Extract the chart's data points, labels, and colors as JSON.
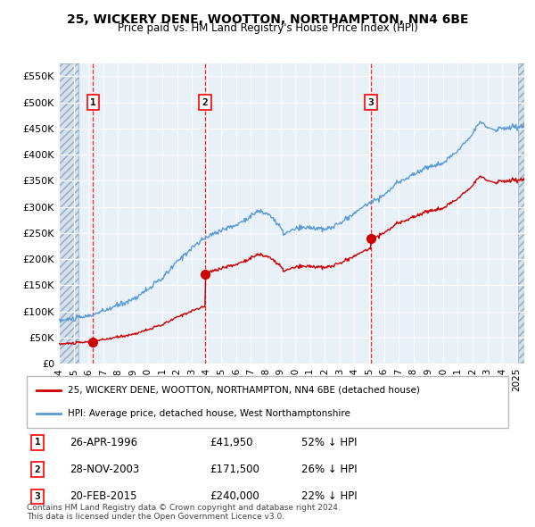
{
  "title1": "25, WICKERY DENE, WOOTTON, NORTHAMPTON, NN4 6BE",
  "title2": "Price paid vs. HM Land Registry's House Price Index (HPI)",
  "plot_bg": "#e8f0f8",
  "legend1": "25, WICKERY DENE, WOOTTON, NORTHAMPTON, NN4 6BE (detached house)",
  "legend2": "HPI: Average price, detached house, West Northamptonshire",
  "transactions": [
    {
      "num": 1,
      "date": "26-APR-1996",
      "price": 41950,
      "pct": "52% ↓ HPI",
      "year": 1996.32
    },
    {
      "num": 2,
      "date": "28-NOV-2003",
      "price": 171500,
      "pct": "26% ↓ HPI",
      "year": 2003.9
    },
    {
      "num": 3,
      "date": "20-FEB-2015",
      "price": 240000,
      "pct": "22% ↓ HPI",
      "year": 2015.13
    }
  ],
  "footer": "Contains HM Land Registry data © Crown copyright and database right 2024.\nThis data is licensed under the Open Government Licence v3.0.",
  "yticks": [
    0,
    50000,
    100000,
    150000,
    200000,
    250000,
    300000,
    350000,
    400000,
    450000,
    500000,
    550000
  ],
  "ylim": [
    0,
    575000
  ],
  "xlim_start": 1994.0,
  "xlim_end": 2025.5,
  "red_line_color": "#cc0000",
  "blue_line_color": "#5b9bd5",
  "hatch_color": "#b0c4d8",
  "hatch_left_end": 1995.3,
  "hatch_right_start": 2025.1
}
